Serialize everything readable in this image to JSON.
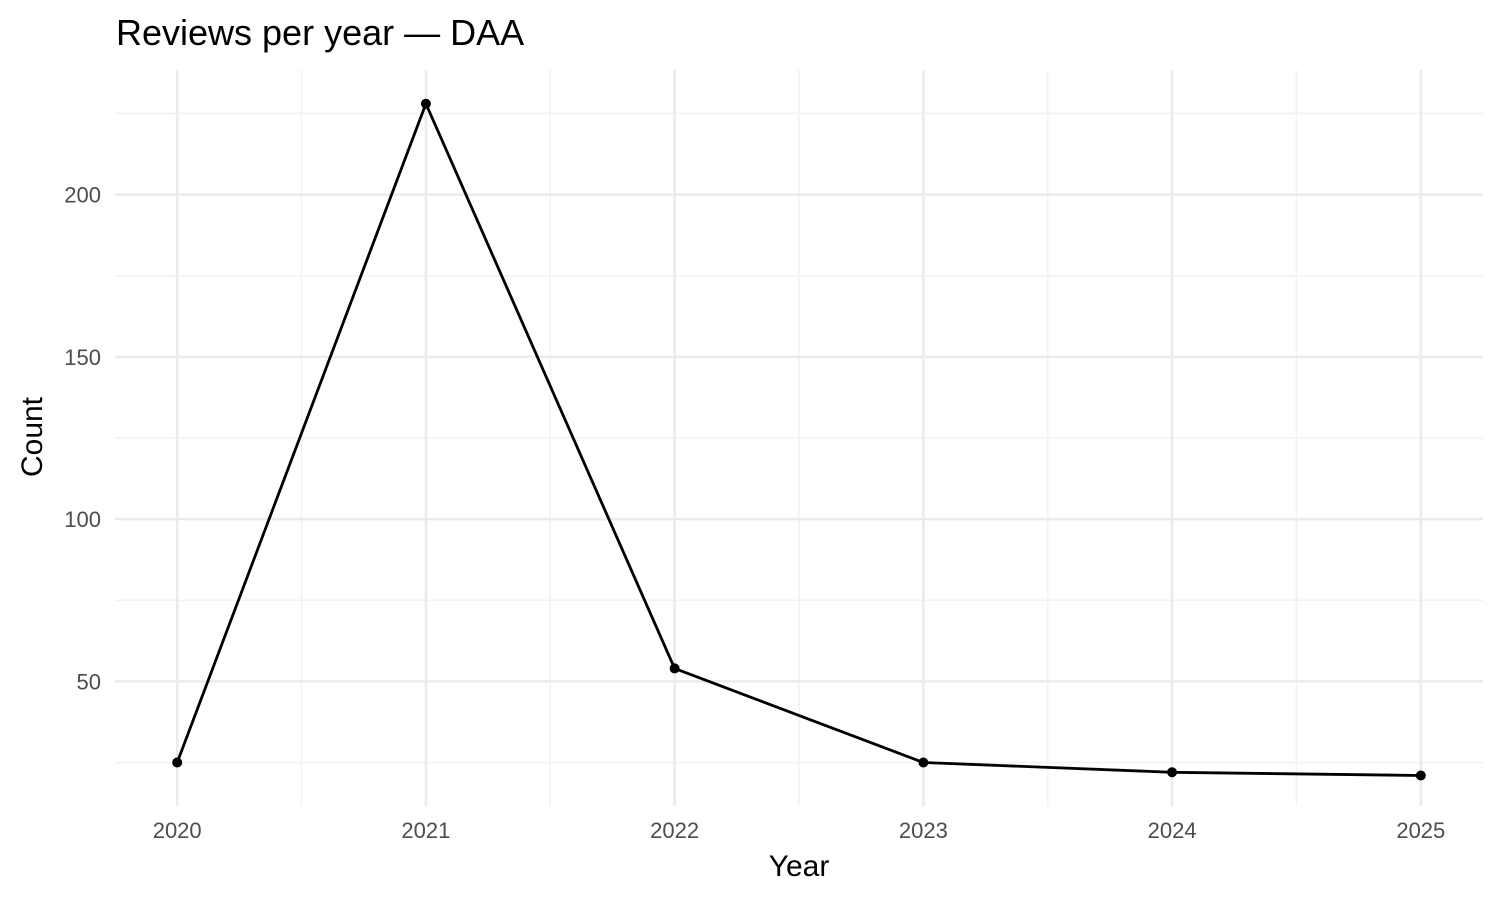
{
  "chart_data": {
    "type": "line",
    "title": "Reviews per year — DAA",
    "xlabel": "Year",
    "ylabel": "Count",
    "x": [
      2020,
      2021,
      2022,
      2023,
      2024,
      2025
    ],
    "x_tick_labels": [
      "2020",
      "2021",
      "2022",
      "2023",
      "2024",
      "2025"
    ],
    "y_ticks": [
      50,
      100,
      150,
      200
    ],
    "y_tick_labels": [
      "50",
      "100",
      "150",
      "200"
    ],
    "series": [
      {
        "values": [
          25,
          228,
          54,
          25,
          22,
          21
        ]
      }
    ],
    "xlim": [
      2019.75,
      2025.25
    ],
    "ylim": [
      11.6,
      238.4
    ],
    "grid": true,
    "legend": "none",
    "colors": {
      "line": "#000000",
      "points": "#000000",
      "grid": "#ebebeb",
      "tick_text": "#4d4d4d"
    }
  }
}
